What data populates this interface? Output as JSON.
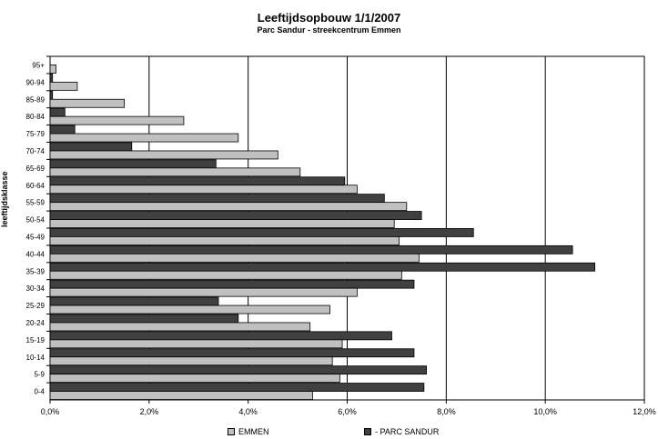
{
  "chart_data": {
    "type": "bar",
    "orientation": "horizontal",
    "title": "Leeftijdsopbouw 1/1/2007",
    "subtitle": "Parc Sandur - streekcentrum Emmen",
    "ylabel": "leeftijdsklasse",
    "xlabel": "",
    "xlim": [
      0,
      12
    ],
    "x_ticks": [
      "0,0%",
      "2,0%",
      "4,0%",
      "6,0%",
      "8,0%",
      "10,0%",
      "12,0%"
    ],
    "grid": "vertical",
    "legend_position": "bottom",
    "categories": [
      "0-4",
      "5-9",
      "10-14",
      "15-19",
      "20-24",
      "25-29",
      "30-34",
      "35-39",
      "40-44",
      "45-49",
      "50-54",
      "55-59",
      "60-64",
      "65-69",
      "70-74",
      "75-79",
      "80-84",
      "85-89",
      "90-94",
      "95+"
    ],
    "series": [
      {
        "name": "EMMEN",
        "color": "#c0c0c0",
        "values": [
          5.3,
          5.85,
          5.7,
          5.9,
          5.25,
          5.65,
          6.2,
          7.1,
          7.45,
          7.05,
          6.95,
          7.2,
          6.2,
          5.05,
          4.6,
          3.8,
          2.7,
          1.5,
          0.55,
          0.12
        ]
      },
      {
        "name": "- PARC SANDUR",
        "color": "#404040",
        "values": [
          7.55,
          7.6,
          7.35,
          6.9,
          3.8,
          3.4,
          7.35,
          11.0,
          10.55,
          8.55,
          7.5,
          6.75,
          5.95,
          3.35,
          1.65,
          0.5,
          0.3,
          0.05,
          0.05,
          0.0
        ]
      }
    ]
  }
}
